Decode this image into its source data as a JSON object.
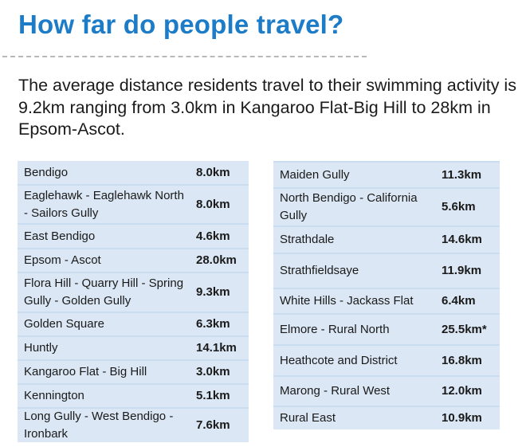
{
  "heading": "How far do people travel?",
  "intro": "The average distance residents travel to their swimming activity is 9.2km ranging from 3.0km in Kangaroo Flat-Big Hill to 28km in Epsom-Ascot.",
  "colors": {
    "heading": "#1d7cc8",
    "row_bg": "#dbe7f4",
    "gap": "#c9dcf0"
  },
  "left_table": [
    {
      "area": "Bendigo",
      "distance": "8.0km"
    },
    {
      "area": "Eaglehawk - Eaglehawk North - Sailors Gully",
      "distance": "8.0km"
    },
    {
      "area": "East Bendigo",
      "distance": "4.6km"
    },
    {
      "area": "Epsom - Ascot",
      "distance": "28.0km"
    },
    {
      "area": "Flora Hill - Quarry Hill - Spring Gully - Golden Gully",
      "distance": "9.3km"
    },
    {
      "area": "Golden Square",
      "distance": "6.3km"
    },
    {
      "area": "Huntly",
      "distance": "14.1km"
    },
    {
      "area": "Kangaroo Flat - Big Hill",
      "distance": "3.0km"
    },
    {
      "area": "Kennington",
      "distance": "5.1km"
    },
    {
      "area": "Long Gully - West Bendigo - Ironbark",
      "distance": "7.6km"
    }
  ],
  "right_table": [
    {
      "area": "Maiden Gully",
      "distance": "11.3km"
    },
    {
      "area": "North Bendigo - California Gully",
      "distance": "5.6km"
    },
    {
      "area": "Strathdale",
      "distance": "14.6km"
    },
    {
      "area": "Strathfieldsaye",
      "distance": "11.9km"
    },
    {
      "area": "White Hills - Jackass Flat",
      "distance": "6.4km"
    },
    {
      "area": "Elmore - Rural North",
      "distance": "25.5km*"
    },
    {
      "area": "Heathcote and District",
      "distance": "16.8km"
    },
    {
      "area": "Marong - Rural West",
      "distance": "12.0km"
    },
    {
      "area": "Rural East",
      "distance": "10.9km"
    }
  ]
}
